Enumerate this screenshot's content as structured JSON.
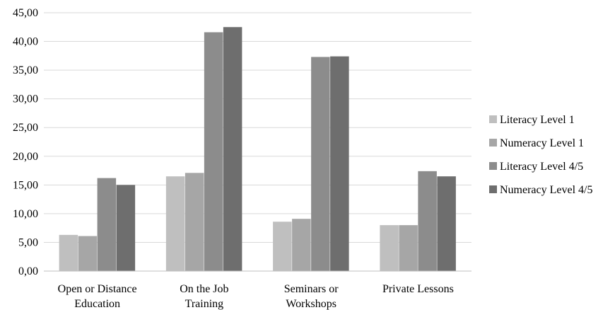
{
  "chart_data": {
    "type": "bar",
    "title": "",
    "xlabel": "",
    "ylabel": "",
    "ylim": [
      0,
      45
    ],
    "ytick_step": 5,
    "ytick_labels": [
      "0,00",
      "5,00",
      "10,00",
      "15,00",
      "20,00",
      "25,00",
      "30,00",
      "35,00",
      "40,00",
      "45,00"
    ],
    "grid": true,
    "legend_position": "right",
    "categories": [
      [
        "Open or Distance",
        "Education"
      ],
      [
        "On the Job",
        "Training"
      ],
      [
        "Seminars or",
        "Workshops"
      ],
      [
        "Private Lessons"
      ]
    ],
    "series": [
      {
        "name": "Literacy Level 1",
        "color": "#bfbfbf",
        "values": [
          6.3,
          16.5,
          8.6,
          8.0
        ]
      },
      {
        "name": "Numeracy Level 1",
        "color": "#a6a6a6",
        "values": [
          6.1,
          17.1,
          9.1,
          8.0
        ]
      },
      {
        "name": "Literacy Level 4/5",
        "color": "#8c8c8c",
        "values": [
          16.2,
          41.6,
          37.3,
          17.4
        ]
      },
      {
        "name": "Numeracy Level 4/5",
        "color": "#6e6e6e",
        "values": [
          15.0,
          42.5,
          37.4,
          16.5
        ]
      }
    ]
  }
}
